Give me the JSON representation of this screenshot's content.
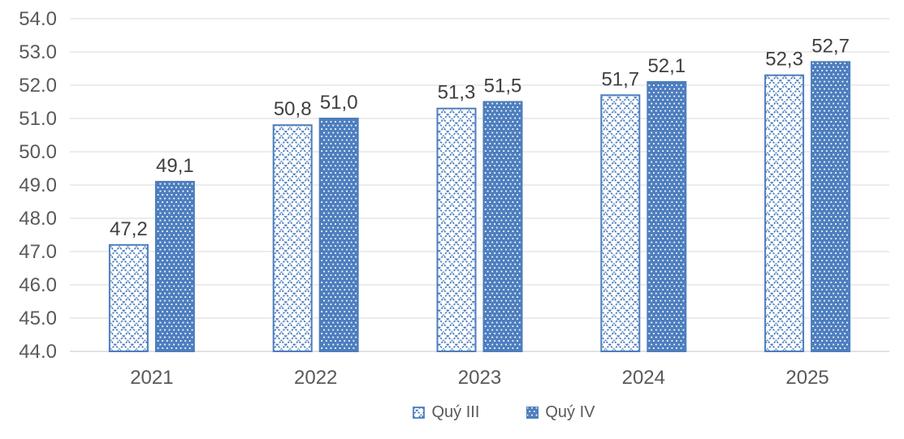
{
  "chart_data": {
    "type": "bar",
    "title": "",
    "xlabel": "",
    "ylabel": "",
    "categories": [
      "2021",
      "2022",
      "2023",
      "2024",
      "2025"
    ],
    "series": [
      {
        "name": "Quý III",
        "values": [
          47.2,
          50.8,
          51.3,
          51.7,
          52.3
        ],
        "data_labels": [
          "47,2",
          "50,8",
          "51,3",
          "51,7",
          "52,3"
        ],
        "pattern": "diagonal-crosshatch",
        "fill_background": "#ffffff"
      },
      {
        "name": "Quý IV",
        "values": [
          49.1,
          51.0,
          51.5,
          52.1,
          52.7
        ],
        "data_labels": [
          "49,1",
          "51,0",
          "51,5",
          "52,1",
          "52,7"
        ],
        "pattern": "dense-white-dots",
        "fill_background": "#4d7ebe"
      }
    ],
    "ylim": [
      44.0,
      54.0
    ],
    "ytick_step": 1.0,
    "ytick_labels": [
      "44.0",
      "45.0",
      "46.0",
      "47.0",
      "48.0",
      "49.0",
      "50.0",
      "51.0",
      "52.0",
      "53.0",
      "54.0"
    ],
    "grid": true,
    "legend_position": "bottom",
    "colors": {
      "series_blue": "#4d7ebe",
      "gridline": "#d9d9d9",
      "axis_text": "#595959",
      "data_label_text": "#3f3f3f",
      "background": "#ffffff"
    }
  }
}
